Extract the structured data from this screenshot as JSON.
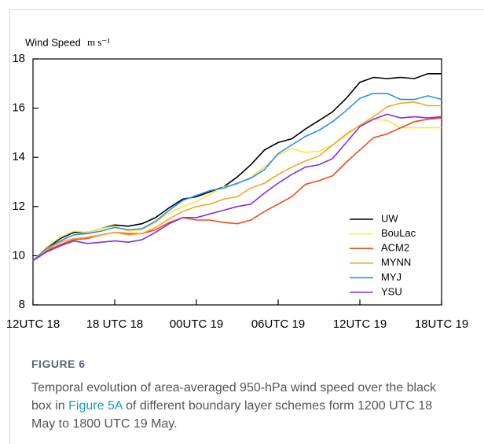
{
  "chart_data": {
    "type": "line",
    "y_label": "Wind Speed",
    "y_unit": "m s⁻¹",
    "categories": [
      "12UTC 18",
      null,
      null,
      null,
      null,
      null,
      "18 UTC 18",
      null,
      null,
      null,
      null,
      null,
      "00UTC 19",
      null,
      null,
      null,
      null,
      null,
      "06UTC 19",
      null,
      null,
      null,
      null,
      null,
      "12UTC 19",
      null,
      null,
      null,
      null,
      null,
      "18UTC 19"
    ],
    "ylim": [
      8,
      18
    ],
    "yticks": [
      8,
      10,
      12,
      14,
      16,
      18
    ],
    "legend": "lower right",
    "series": [
      {
        "name": "UW",
        "color": "#000000",
        "values": [
          9.8,
          10.3,
          10.7,
          10.95,
          10.95,
          11.1,
          11.25,
          11.2,
          11.3,
          11.55,
          11.95,
          12.3,
          12.4,
          12.6,
          12.8,
          13.2,
          13.7,
          14.3,
          14.6,
          14.75,
          15.15,
          15.5,
          15.85,
          16.4,
          17.05,
          17.25,
          17.2,
          17.25,
          17.2,
          17.4,
          17.4
        ]
      },
      {
        "name": "BouLac",
        "color": "#f5e642",
        "values": [
          9.8,
          10.35,
          10.75,
          11.0,
          10.95,
          11.1,
          11.2,
          11.0,
          11.05,
          11.35,
          11.75,
          12.0,
          12.2,
          12.5,
          12.8,
          12.9,
          13.2,
          13.6,
          14.1,
          14.35,
          14.2,
          14.25,
          14.5,
          14.9,
          15.3,
          15.55,
          15.5,
          15.2,
          15.2,
          15.2,
          15.2
        ]
      },
      {
        "name": "ACM2",
        "color": "#f04a1a",
        "values": [
          9.8,
          10.2,
          10.45,
          10.65,
          10.7,
          10.85,
          10.95,
          10.9,
          10.9,
          11.05,
          11.35,
          11.55,
          11.45,
          11.45,
          11.35,
          11.3,
          11.45,
          11.8,
          12.1,
          12.4,
          12.9,
          13.05,
          13.25,
          13.8,
          14.3,
          14.8,
          14.95,
          15.2,
          15.45,
          15.55,
          15.6
        ]
      },
      {
        "name": "MYNN",
        "color": "#f5a623",
        "values": [
          9.8,
          10.25,
          10.55,
          10.7,
          10.75,
          10.85,
          10.95,
          10.85,
          10.9,
          11.15,
          11.5,
          11.8,
          12.0,
          12.1,
          12.3,
          12.4,
          12.75,
          12.95,
          13.3,
          13.6,
          13.85,
          14.05,
          14.5,
          14.95,
          15.3,
          15.65,
          16.05,
          16.2,
          16.25,
          16.1,
          16.1
        ]
      },
      {
        "name": "MYJ",
        "color": "#2a8ff0",
        "values": [
          9.8,
          10.3,
          10.6,
          10.85,
          10.9,
          11.0,
          11.15,
          11.05,
          11.1,
          11.4,
          11.85,
          12.25,
          12.45,
          12.65,
          12.75,
          12.95,
          13.15,
          13.5,
          14.15,
          14.5,
          14.85,
          15.1,
          15.45,
          15.9,
          16.4,
          16.6,
          16.6,
          16.35,
          16.35,
          16.5,
          16.35
        ]
      },
      {
        "name": "YSU",
        "color": "#8a2be2",
        "values": [
          9.8,
          10.15,
          10.4,
          10.6,
          10.5,
          10.55,
          10.6,
          10.55,
          10.65,
          10.95,
          11.3,
          11.55,
          11.55,
          11.7,
          11.85,
          12.0,
          12.1,
          12.55,
          12.95,
          13.3,
          13.6,
          13.7,
          13.95,
          14.6,
          15.25,
          15.55,
          15.75,
          15.6,
          15.65,
          15.6,
          15.65
        ]
      }
    ]
  },
  "caption": {
    "label": "FIGURE 6",
    "text_before": "Temporal evolution of area-averaged 950-hPa wind speed over the black box in ",
    "link": "Figure 5A",
    "text_after": " of different boundary layer schemes form 1200 UTC 18 May to 1800 UTC 19 May."
  }
}
